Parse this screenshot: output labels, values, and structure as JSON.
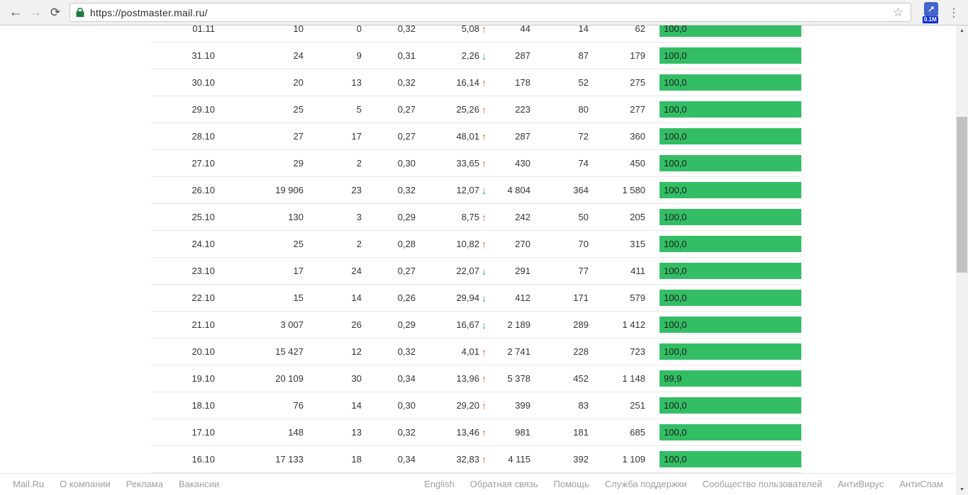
{
  "browser": {
    "url": "https://postmaster.mail.ru/",
    "extension_badge": "0.1M"
  },
  "icons": {
    "back": "←",
    "forward": "→",
    "reload": "⟳",
    "star": "☆",
    "extension_arrow": "↗",
    "menu": "⋮",
    "arrow_up": "↑",
    "arrow_down": "↓",
    "scroll_up": "▲",
    "scroll_down": "▼"
  },
  "colors": {
    "bar_green": "#33be65",
    "delta_up": "#e8542b",
    "delta_down": "#27a83c",
    "lock_green": "#188038"
  },
  "table": {
    "rows": [
      {
        "date": "01.11",
        "c2": "10",
        "c3": "0",
        "c4": "0,32",
        "delta": "5,08",
        "delta_dir": "up",
        "c6": "44",
        "c7": "14",
        "c8": "62",
        "bar": "100,0",
        "bar_pct": 100
      },
      {
        "date": "31.10",
        "c2": "24",
        "c3": "9",
        "c4": "0,31",
        "delta": "2,26",
        "delta_dir": "down",
        "c6": "287",
        "c7": "87",
        "c8": "179",
        "bar": "100,0",
        "bar_pct": 100
      },
      {
        "date": "30.10",
        "c2": "20",
        "c3": "13",
        "c4": "0,32",
        "delta": "16,14",
        "delta_dir": "up",
        "c6": "178",
        "c7": "52",
        "c8": "275",
        "bar": "100,0",
        "bar_pct": 100
      },
      {
        "date": "29.10",
        "c2": "25",
        "c3": "5",
        "c4": "0,27",
        "delta": "25,26",
        "delta_dir": "up",
        "c6": "223",
        "c7": "80",
        "c8": "277",
        "bar": "100,0",
        "bar_pct": 100
      },
      {
        "date": "28.10",
        "c2": "27",
        "c3": "17",
        "c4": "0,27",
        "delta": "48,01",
        "delta_dir": "up",
        "c6": "287",
        "c7": "72",
        "c8": "360",
        "bar": "100,0",
        "bar_pct": 100
      },
      {
        "date": "27.10",
        "c2": "29",
        "c3": "2",
        "c4": "0,30",
        "delta": "33,65",
        "delta_dir": "up",
        "c6": "430",
        "c7": "74",
        "c8": "450",
        "bar": "100,0",
        "bar_pct": 100
      },
      {
        "date": "26.10",
        "c2": "19 906",
        "c3": "23",
        "c4": "0,32",
        "delta": "12,07",
        "delta_dir": "down",
        "c6": "4 804",
        "c7": "364",
        "c8": "1 580",
        "bar": "100,0",
        "bar_pct": 100
      },
      {
        "date": "25.10",
        "c2": "130",
        "c3": "3",
        "c4": "0,29",
        "delta": "8,75",
        "delta_dir": "up",
        "c6": "242",
        "c7": "50",
        "c8": "205",
        "bar": "100,0",
        "bar_pct": 100
      },
      {
        "date": "24.10",
        "c2": "25",
        "c3": "2",
        "c4": "0,28",
        "delta": "10,82",
        "delta_dir": "up",
        "c6": "270",
        "c7": "70",
        "c8": "315",
        "bar": "100,0",
        "bar_pct": 100
      },
      {
        "date": "23.10",
        "c2": "17",
        "c3": "24",
        "c4": "0,27",
        "delta": "22,07",
        "delta_dir": "down",
        "c6": "291",
        "c7": "77",
        "c8": "411",
        "bar": "100,0",
        "bar_pct": 100
      },
      {
        "date": "22.10",
        "c2": "15",
        "c3": "14",
        "c4": "0,26",
        "delta": "29,94",
        "delta_dir": "down",
        "c6": "412",
        "c7": "171",
        "c8": "579",
        "bar": "100,0",
        "bar_pct": 100
      },
      {
        "date": "21.10",
        "c2": "3 007",
        "c3": "26",
        "c4": "0,29",
        "delta": "16,67",
        "delta_dir": "down",
        "c6": "2 189",
        "c7": "289",
        "c8": "1 412",
        "bar": "100,0",
        "bar_pct": 100
      },
      {
        "date": "20.10",
        "c2": "15 427",
        "c3": "12",
        "c4": "0,32",
        "delta": "4,01",
        "delta_dir": "up",
        "c6": "2 741",
        "c7": "228",
        "c8": "723",
        "bar": "100,0",
        "bar_pct": 100
      },
      {
        "date": "19.10",
        "c2": "20 109",
        "c3": "30",
        "c4": "0,34",
        "delta": "13,96",
        "delta_dir": "up",
        "c6": "5 378",
        "c7": "452",
        "c8": "1 148",
        "bar": "99,9",
        "bar_pct": 99.9
      },
      {
        "date": "18.10",
        "c2": "76",
        "c3": "14",
        "c4": "0,30",
        "delta": "29,20",
        "delta_dir": "up",
        "c6": "399",
        "c7": "83",
        "c8": "251",
        "bar": "100,0",
        "bar_pct": 100
      },
      {
        "date": "17.10",
        "c2": "148",
        "c3": "13",
        "c4": "0,32",
        "delta": "13,46",
        "delta_dir": "up",
        "c6": "981",
        "c7": "181",
        "c8": "685",
        "bar": "100,0",
        "bar_pct": 100
      },
      {
        "date": "16.10",
        "c2": "17 133",
        "c3": "18",
        "c4": "0,34",
        "delta": "32,83",
        "delta_dir": "up",
        "c6": "4 115",
        "c7": "392",
        "c8": "1 109",
        "bar": "100,0",
        "bar_pct": 100
      }
    ]
  },
  "footer": {
    "left_links": [
      "Mail.Ru",
      "О компании",
      "Реклама",
      "Вакансии"
    ],
    "right_links": [
      "English",
      "Обратная связь",
      "Помощь",
      "Служба поддержки",
      "Сообщество пользователей",
      "АнтиВирус",
      "АнтиСпам"
    ]
  }
}
